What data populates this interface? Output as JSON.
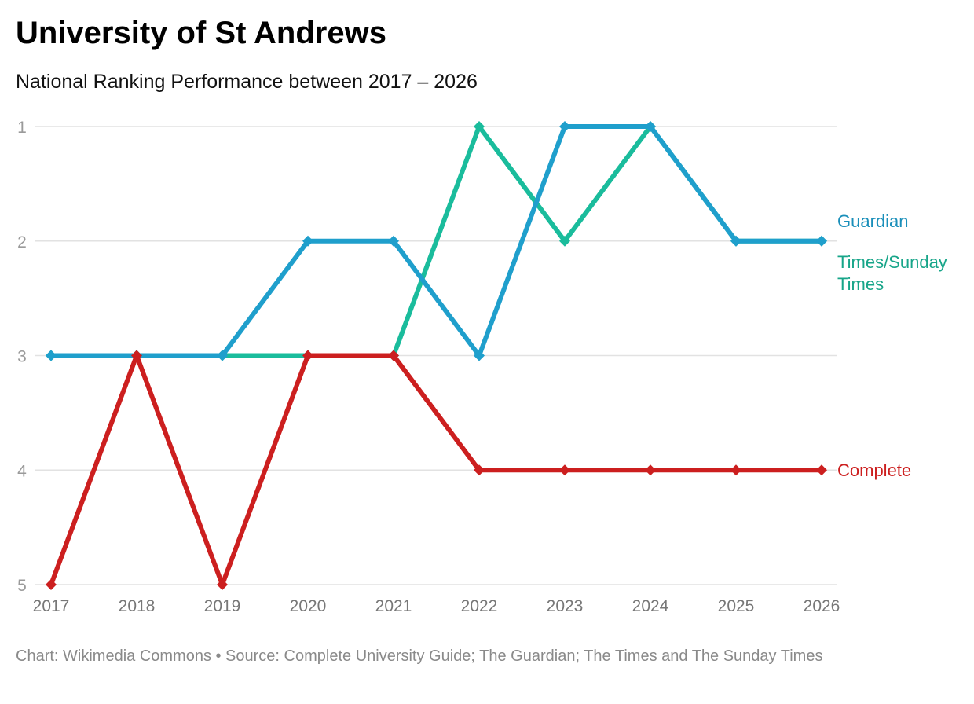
{
  "title": "University of St Andrews",
  "subtitle": "National Ranking Performance between 2017 – 2026",
  "footer": "Chart: Wikimedia Commons • Source: Complete University Guide; The Guardian; The Times and The Sunday Times",
  "chart_data": {
    "type": "line",
    "x": [
      "2017",
      "2018",
      "2019",
      "2020",
      "2021",
      "2022",
      "2023",
      "2024",
      "2025",
      "2026"
    ],
    "ylim": [
      1,
      5
    ],
    "y_reversed": true,
    "y_ticks": [
      "1",
      "2",
      "3",
      "4",
      "5"
    ],
    "grid": true,
    "legend": "right, inline labels at line ends",
    "series": [
      {
        "name": "Times/Sunday Times",
        "label_lines": [
          "Times/Sunday",
          "Times"
        ],
        "color": "#1abc9c",
        "label_color": "#17a589",
        "values": [
          3,
          3,
          3,
          3,
          3,
          1,
          2,
          1,
          2,
          2
        ]
      },
      {
        "name": "Guardian",
        "label_lines": [
          "Guardian"
        ],
        "color": "#1f9fcc",
        "label_color": "#1a8fba",
        "values": [
          3,
          3,
          3,
          2,
          2,
          3,
          1,
          1,
          2,
          2
        ]
      },
      {
        "name": "Complete",
        "label_lines": [
          "Complete"
        ],
        "color": "#cc1f1f",
        "label_color": "#cc1f1f",
        "values": [
          5,
          3,
          5,
          3,
          3,
          4,
          4,
          4,
          4,
          4
        ]
      }
    ]
  }
}
